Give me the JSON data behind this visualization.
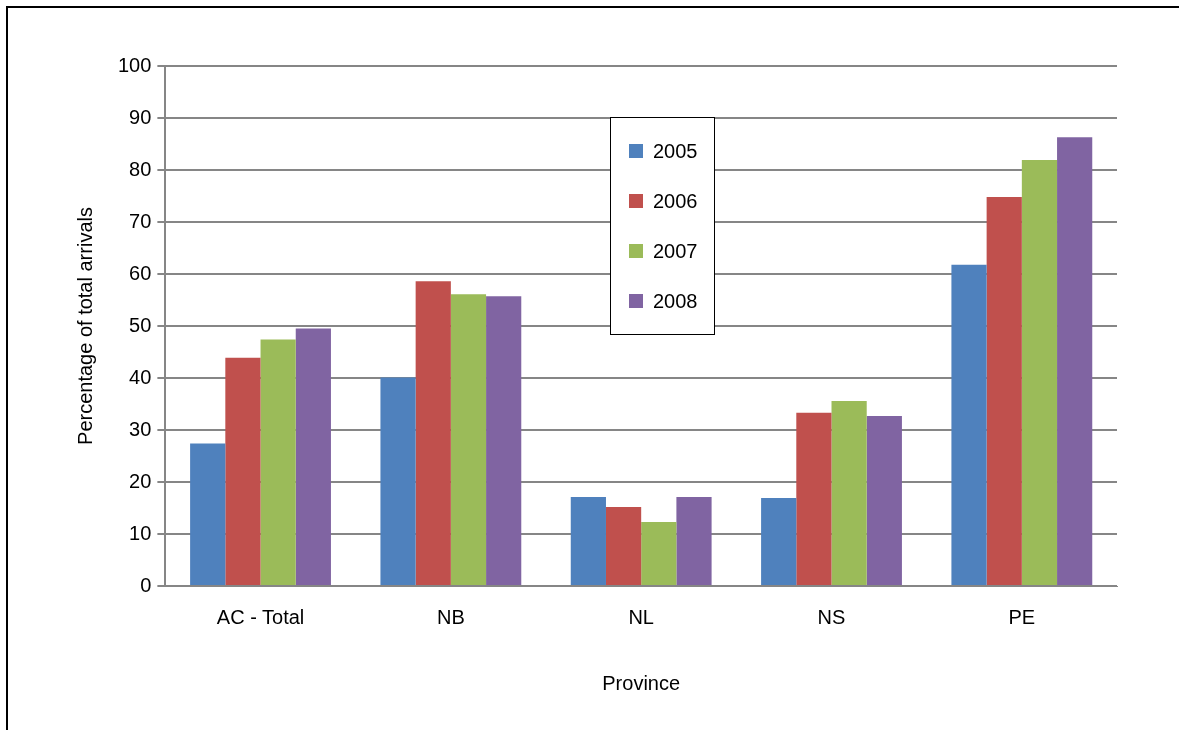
{
  "chart_data": {
    "type": "bar",
    "xlabel": "Province",
    "ylabel": "Percentage of total arrivals",
    "categories": [
      "AC - Total",
      "NB",
      "NL",
      "NS",
      "PE"
    ],
    "series": [
      {
        "name": "2005",
        "color": "#4f81bd",
        "values": [
          27.4,
          40.1,
          17.1,
          16.9,
          61.8
        ]
      },
      {
        "name": "2006",
        "color": "#c0504d",
        "values": [
          43.9,
          58.6,
          15.2,
          33.3,
          74.8
        ]
      },
      {
        "name": "2007",
        "color": "#9bbb59",
        "values": [
          47.4,
          56.1,
          12.3,
          35.6,
          81.9
        ]
      },
      {
        "name": "2008",
        "color": "#8064a2",
        "values": [
          49.5,
          55.7,
          17.1,
          32.7,
          86.3
        ]
      }
    ],
    "ylim": [
      0,
      100
    ],
    "yticks": [
      0,
      10,
      20,
      30,
      40,
      50,
      60,
      70,
      80,
      90,
      100
    ],
    "grid": "y",
    "legend": "top"
  }
}
